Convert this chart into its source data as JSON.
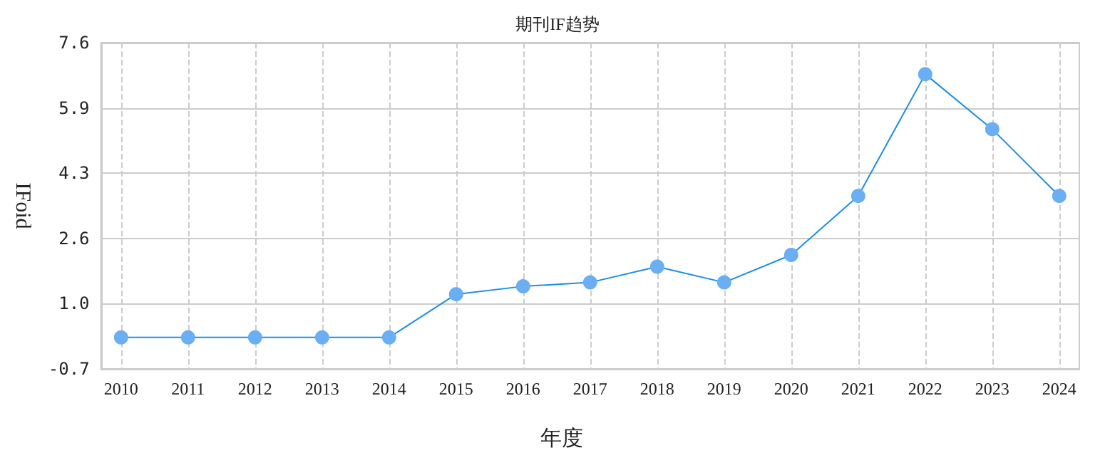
{
  "chart_data": {
    "type": "line",
    "title": "期刊IF趋势",
    "xlabel": "年度",
    "ylabel": "IFoid",
    "x": [
      2010,
      2011,
      2012,
      2013,
      2014,
      2015,
      2016,
      2017,
      2018,
      2019,
      2020,
      2021,
      2022,
      2023,
      2024
    ],
    "series": [
      {
        "color": "#1a8fe8",
        "values": [
          0.1,
          0.1,
          0.1,
          0.1,
          0.1,
          1.2,
          1.4,
          1.5,
          1.9,
          1.5,
          2.2,
          3.7,
          6.8,
          5.4,
          3.7
        ]
      }
    ],
    "xlim": [
      2009.7,
      2024.3
    ],
    "xticks": [
      2010,
      2011,
      2012,
      2013,
      2014,
      2015,
      2016,
      2017,
      2018,
      2019,
      2020,
      2021,
      2022,
      2023,
      2024
    ],
    "ylim": [
      -0.7,
      7.6
    ],
    "yticks": [
      -0.7,
      {
        "value": 0.96,
        "label": "1.0"
      },
      {
        "value": 2.62,
        "label": "2.6"
      },
      {
        "value": 4.28,
        "label": "4.3"
      },
      {
        "value": 5.94,
        "label": "5.9"
      },
      7.6
    ],
    "grid": true,
    "marker": "circle",
    "line_style": "solid"
  }
}
